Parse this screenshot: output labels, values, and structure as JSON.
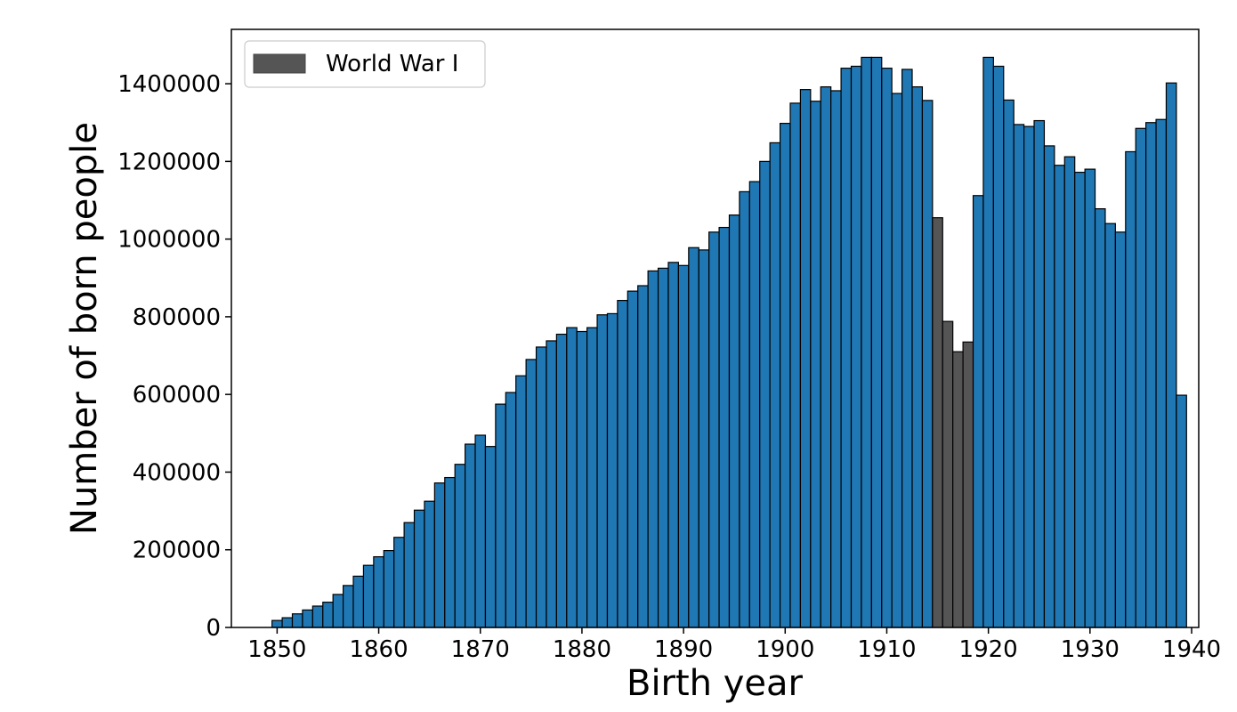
{
  "chart_data": {
    "type": "bar",
    "xlabel": "Birth year",
    "ylabel": "Number of born people",
    "xlim": [
      1845.5,
      1940.7
    ],
    "ylim": [
      0,
      1540000
    ],
    "xticks": [
      1850,
      1860,
      1870,
      1880,
      1890,
      1900,
      1910,
      1920,
      1930,
      1940
    ],
    "yticks": [
      0,
      200000,
      400000,
      600000,
      800000,
      1000000,
      1200000,
      1400000
    ],
    "grid": false,
    "legend_position": "top-left",
    "legend": [
      {
        "label": "World War I",
        "color": "#555555"
      }
    ],
    "bin_start": 1849.5,
    "bin_width": 1,
    "values": [
      18000,
      25000,
      35000,
      45000,
      55000,
      65000,
      85000,
      108000,
      132000,
      160000,
      182000,
      198000,
      232000,
      270000,
      302000,
      325000,
      372000,
      386000,
      420000,
      472000,
      495000,
      466000,
      575000,
      605000,
      648000,
      690000,
      722000,
      738000,
      755000,
      772000,
      762000,
      772000,
      805000,
      808000,
      842000,
      866000,
      880000,
      918000,
      925000,
      940000,
      932000,
      978000,
      972000,
      1018000,
      1030000,
      1062000,
      1122000,
      1148000,
      1200000,
      1248000,
      1298000,
      1350000,
      1385000,
      1355000,
      1392000,
      1382000,
      1440000,
      1445000,
      1468000,
      1468000,
      1440000,
      1375000,
      1437000,
      1392000,
      1357000,
      1055000,
      788000,
      710000,
      735000,
      1112000,
      1468000,
      1445000,
      1358000,
      1295000,
      1290000,
      1305000,
      1240000,
      1190000,
      1212000,
      1172000,
      1180000,
      1078000,
      1040000,
      1018000,
      1225000,
      1285000,
      1300000,
      1308000,
      1402000,
      598000
    ],
    "highlight": {
      "name": "World War I",
      "from_year": 1915,
      "to_year": 1918
    },
    "colors": {
      "bar": "#1f77b4",
      "highlight": "#555555",
      "edge": "#000000"
    }
  }
}
